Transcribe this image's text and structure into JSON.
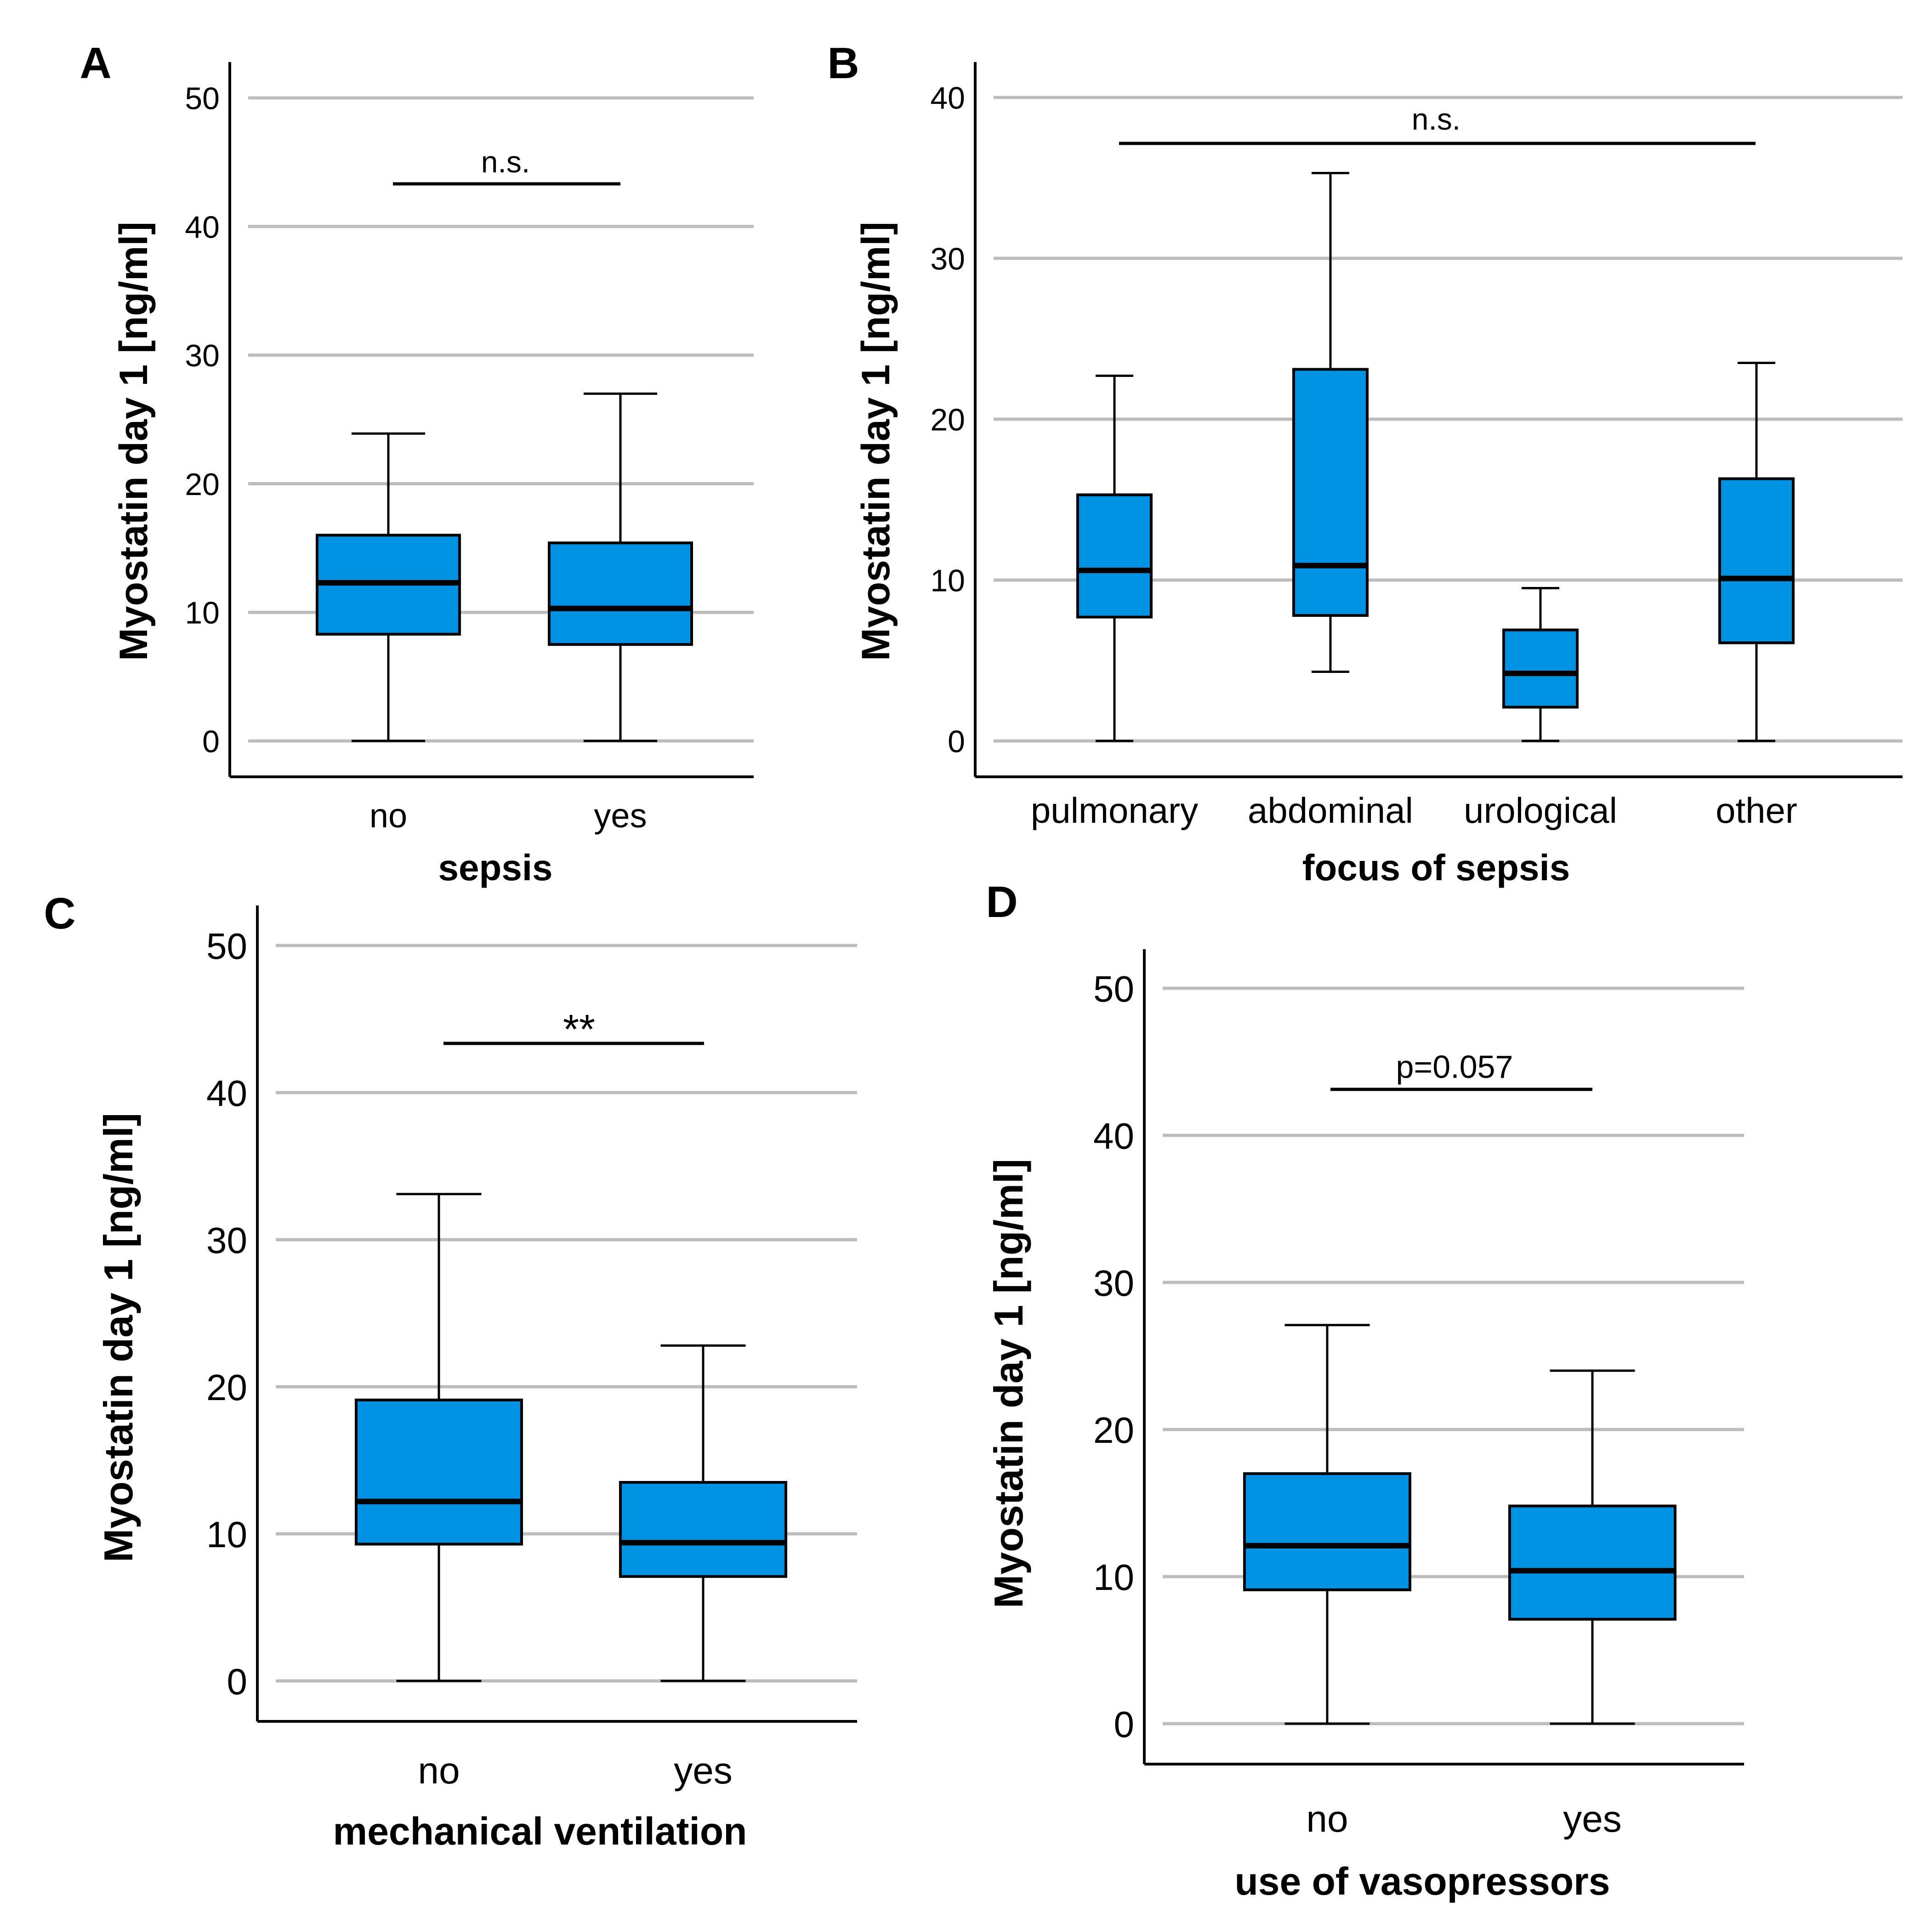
{
  "box_color": "#0091e2",
  "chart_data": [
    {
      "panel": "A",
      "type": "box",
      "xlabel": "sepsis",
      "ylabel": "Myostatin day 1 [ng/ml]",
      "ylim": [
        0,
        50
      ],
      "yticks": [
        "0",
        "10",
        "20",
        "30",
        "40",
        "50"
      ],
      "categories": [
        "no",
        "yes"
      ],
      "boxes": [
        {
          "min": 0,
          "q1": 8.3,
          "median": 12.3,
          "q3": 16.0,
          "max": 23.9
        },
        {
          "min": 0,
          "q1": 7.5,
          "median": 10.3,
          "q3": 15.4,
          "max": 27.0
        }
      ],
      "significance": "n.s."
    },
    {
      "panel": "B",
      "type": "box",
      "xlabel": "focus of sepsis",
      "ylabel": "Myostatin day 1 [ng/ml]",
      "ylim": [
        0,
        40
      ],
      "yticks": [
        "0",
        "10",
        "20",
        "30",
        "40"
      ],
      "categories": [
        "pulmonary",
        "abdominal",
        "urological",
        "other"
      ],
      "boxes": [
        {
          "min": 0,
          "q1": 7.7,
          "median": 10.6,
          "q3": 15.3,
          "max": 22.7
        },
        {
          "min": 4.3,
          "q1": 7.8,
          "median": 10.9,
          "q3": 23.1,
          "max": 35.3
        },
        {
          "min": 0,
          "q1": 2.1,
          "median": 4.2,
          "q3": 6.9,
          "max": 9.5
        },
        {
          "min": 0,
          "q1": 6.1,
          "median": 10.1,
          "q3": 16.3,
          "max": 23.5
        }
      ],
      "significance": "n.s."
    },
    {
      "panel": "C",
      "type": "box",
      "xlabel": "mechanical ventilation",
      "ylabel": "Myostatin day 1 [ng/ml]",
      "ylim": [
        0,
        50
      ],
      "yticks": [
        "0",
        "10",
        "20",
        "30",
        "40",
        "50"
      ],
      "categories": [
        "no",
        "yes"
      ],
      "boxes": [
        {
          "min": 0,
          "q1": 9.3,
          "median": 12.2,
          "q3": 19.1,
          "max": 33.1
        },
        {
          "min": 0,
          "q1": 7.1,
          "median": 9.4,
          "q3": 13.5,
          "max": 22.8
        }
      ],
      "significance": "**"
    },
    {
      "panel": "D",
      "type": "box",
      "xlabel": "use of vasopressors",
      "ylabel": "Myostatin day 1 [ng/ml]",
      "ylim": [
        0,
        50
      ],
      "yticks": [
        "0",
        "10",
        "20",
        "30",
        "40",
        "50"
      ],
      "categories": [
        "no",
        "yes"
      ],
      "boxes": [
        {
          "min": 0,
          "q1": 9.1,
          "median": 12.1,
          "q3": 17.0,
          "max": 27.1
        },
        {
          "min": 0,
          "q1": 7.1,
          "median": 10.4,
          "q3": 14.8,
          "max": 24.0
        }
      ],
      "significance": "p=0.057"
    }
  ]
}
